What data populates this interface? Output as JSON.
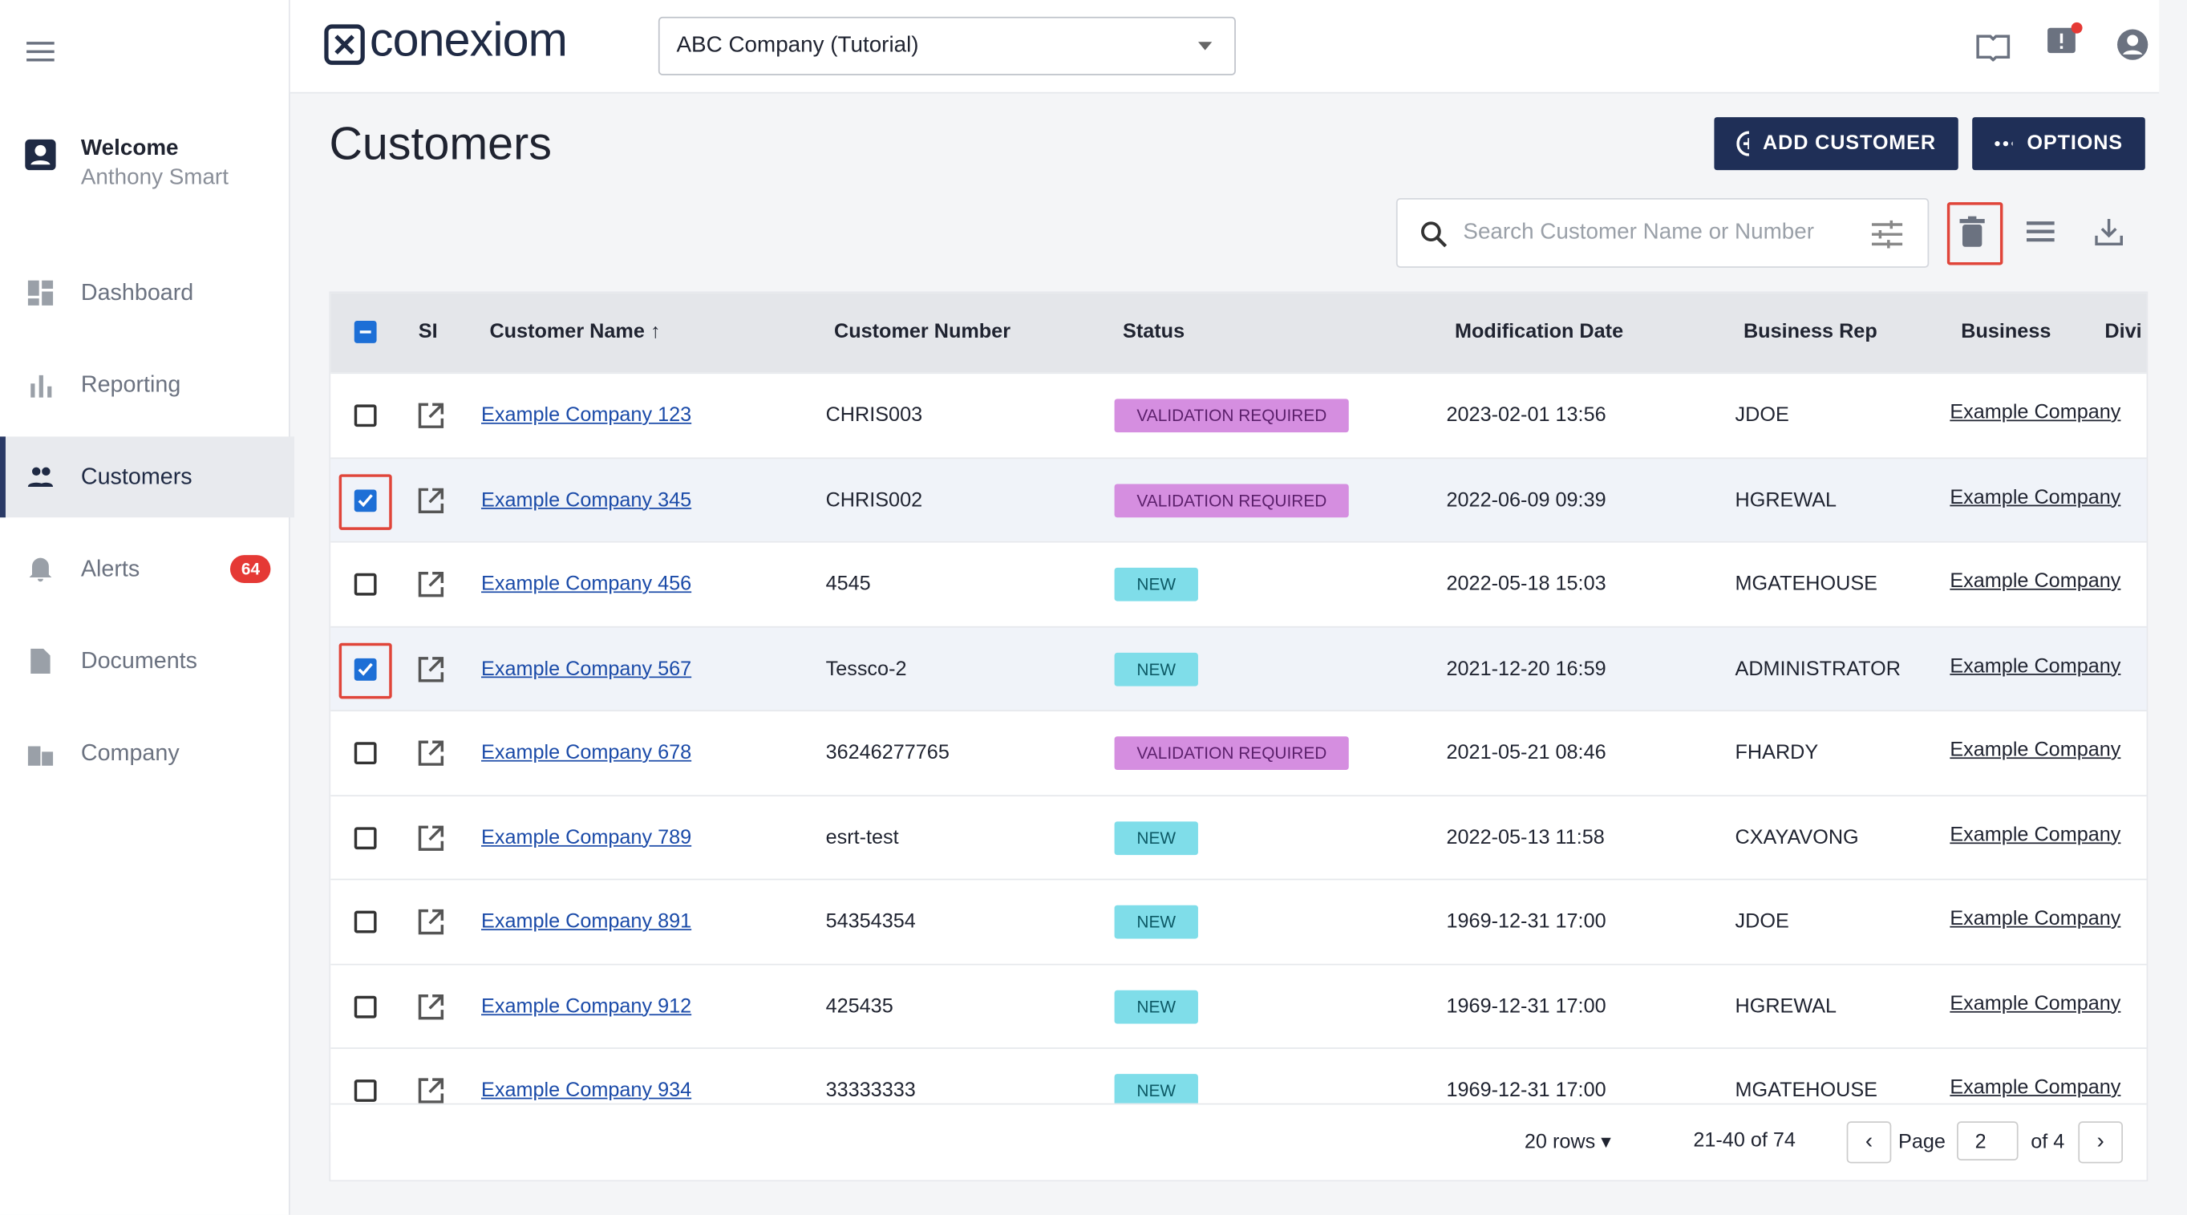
{
  "sidebar": {
    "welcome": "Welcome",
    "user": "Anthony Smart",
    "nav": [
      {
        "label": "Dashboard"
      },
      {
        "label": "Reporting"
      },
      {
        "label": "Customers",
        "active": true
      },
      {
        "label": "Alerts",
        "badge": "64"
      },
      {
        "label": "Documents"
      },
      {
        "label": "Company"
      }
    ]
  },
  "header": {
    "logo": "conexiom",
    "company_select": "ABC Company (Tutorial)"
  },
  "page": {
    "title": "Customers",
    "add_button": "ADD CUSTOMER",
    "options_button": "OPTIONS",
    "search_placeholder": "Search Customer Name or Number"
  },
  "table": {
    "columns": [
      "SI",
      "Customer Name",
      "Customer Number",
      "Status",
      "Modification Date",
      "Business Rep",
      "Business",
      "Divi"
    ],
    "rows": [
      {
        "name": "Example Company 123",
        "number": "CHRIS003",
        "status": "VALIDATION REQUIRED",
        "date": "2023-02-01 13:56",
        "rep": "JDOE",
        "business": "Example Company",
        "checked": false
      },
      {
        "name": "Example Company 345",
        "number": "CHRIS002",
        "status": "VALIDATION REQUIRED",
        "date": "2022-06-09 09:39",
        "rep": "HGREWAL",
        "business": "Example Company",
        "checked": true
      },
      {
        "name": "Example Company 456",
        "number": "4545",
        "status": "NEW",
        "date": "2022-05-18 15:03",
        "rep": "MGATEHOUSE",
        "business": "Example Company",
        "checked": false
      },
      {
        "name": "Example Company 567",
        "number": "Tessco-2",
        "status": "NEW",
        "date": "2021-12-20 16:59",
        "rep": "ADMINISTRATOR",
        "business": "Example Company",
        "checked": true
      },
      {
        "name": "Example Company 678",
        "number": "36246277765",
        "status": "VALIDATION REQUIRED",
        "date": "2021-05-21 08:46",
        "rep": "FHARDY",
        "business": "Example Company",
        "checked": false
      },
      {
        "name": "Example Company 789",
        "number": "esrt-test",
        "status": "NEW",
        "date": "2022-05-13 11:58",
        "rep": "CXAYAVONG",
        "business": "Example Company",
        "checked": false
      },
      {
        "name": "Example Company 891",
        "number": "54354354",
        "status": "NEW",
        "date": "1969-12-31 17:00",
        "rep": "JDOE",
        "business": "Example Company",
        "checked": false
      },
      {
        "name": "Example Company 912",
        "number": "425435",
        "status": "NEW",
        "date": "1969-12-31 17:00",
        "rep": "HGREWAL",
        "business": "Example Company",
        "checked": false
      },
      {
        "name": "Example Company 934",
        "number": "33333333",
        "status": "NEW",
        "date": "1969-12-31 17:00",
        "rep": "MGATEHOUSE",
        "business": "Example Company",
        "checked": false
      }
    ]
  },
  "pagination": {
    "rows_per_page": "20 rows",
    "range": "21-40 of 74",
    "page_label": "Page",
    "page": "2",
    "of": "of 4"
  }
}
